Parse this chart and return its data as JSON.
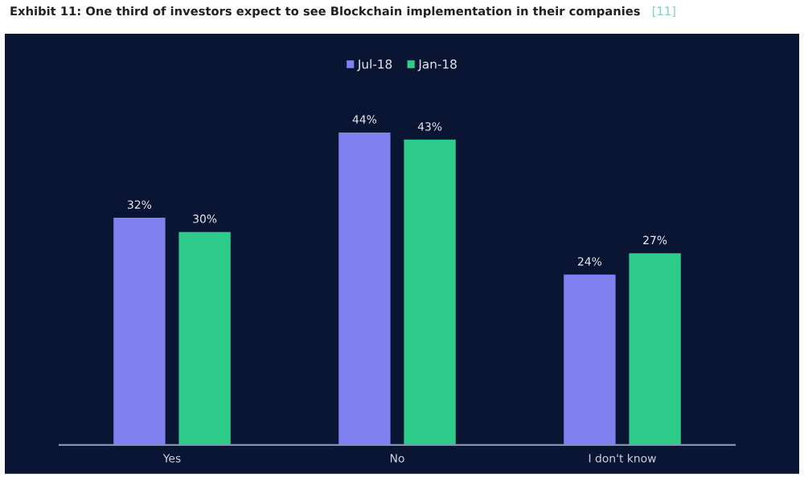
{
  "chart_data": {
    "type": "bar",
    "title": "Exhibit 11: One third of investors expect to see Blockchain implementation in their companies",
    "annotations": [
      "[11]"
    ],
    "categories": [
      "Yes",
      "No",
      "I don't know"
    ],
    "series": [
      {
        "name": "Jul-18",
        "color": "#8080f0",
        "values": [
          32,
          44,
          24
        ],
        "value_labels": [
          "32%",
          "44%",
          "24%"
        ]
      },
      {
        "name": "Jan-18",
        "color": "#2ecc8a",
        "values": [
          30,
          43,
          27
        ],
        "value_labels": [
          "30%",
          "43%",
          "27%"
        ]
      }
    ],
    "legend": "top"
  }
}
